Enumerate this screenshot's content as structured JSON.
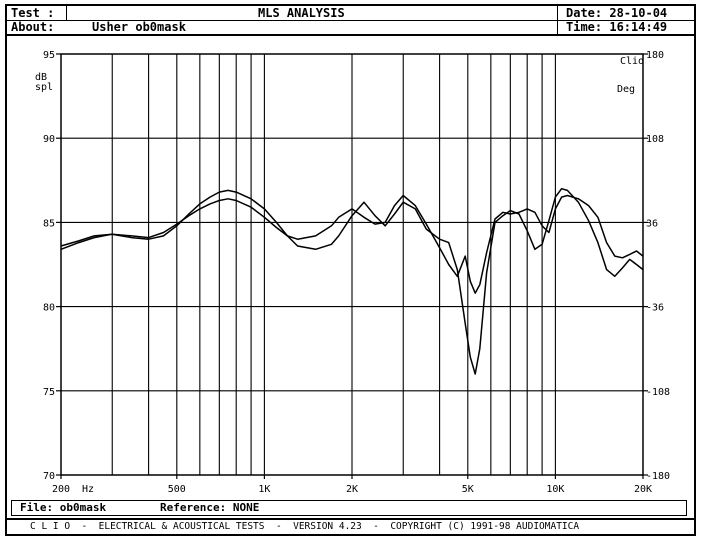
{
  "header": {
    "test_label": "Test :",
    "about_label": "About:",
    "about_value": "Usher ob0mask",
    "title": "MLS ANALYSIS",
    "date": "Date: 28-10-04",
    "time": "Time: 16:14:49"
  },
  "footer": {
    "file": "File: ob0mask",
    "reference": "Reference: NONE",
    "credits": "C L I O  -  ELECTRICAL & ACOUSTICAL TESTS  -  VERSION 4.23  -  COPYRIGHT (C) 1991-98 AUDIOMATICA"
  },
  "chart_data": {
    "type": "line",
    "title": "MLS ANALYSIS",
    "xlabel": "Hz",
    "ylabel": "dB spl",
    "y2label": "Deg",
    "brand": "Clio",
    "x_scale": "log",
    "xlim": [
      200,
      20000
    ],
    "ylim": [
      70,
      95
    ],
    "y2lim": [
      -180,
      180
    ],
    "grid": true,
    "x_ticks": [
      {
        "value": 200,
        "label": "200"
      },
      {
        "value": 500,
        "label": "500"
      },
      {
        "value": 1000,
        "label": "1K"
      },
      {
        "value": 2000,
        "label": "2K"
      },
      {
        "value": 5000,
        "label": "5K"
      },
      {
        "value": 10000,
        "label": "10K"
      },
      {
        "value": 20000,
        "label": "20K"
      }
    ],
    "y_ticks": [
      {
        "value": 95,
        "label": "95"
      },
      {
        "value": 90,
        "label": "90"
      },
      {
        "value": 85,
        "label": "85"
      },
      {
        "value": 80,
        "label": "80"
      },
      {
        "value": 75,
        "label": "75"
      },
      {
        "value": 70,
        "label": "70"
      }
    ],
    "y2_ticks": [
      {
        "value": 180,
        "label": "180"
      },
      {
        "value": 108,
        "label": "108"
      },
      {
        "value": 36,
        "label": "36"
      },
      {
        "value": -36,
        "label": "-36"
      },
      {
        "value": -108,
        "label": "-108"
      },
      {
        "value": -180,
        "label": "-180"
      }
    ],
    "series": [
      {
        "x": [
          200,
          230,
          260,
          300,
          350,
          400,
          450,
          500,
          550,
          600,
          650,
          700,
          750,
          800,
          900,
          1000,
          1100,
          1200,
          1300,
          1500,
          1700,
          1800,
          2000,
          2200,
          2400,
          2600,
          2800,
          3000,
          3300,
          3600,
          4000,
          4300,
          4600,
          4900,
          5100,
          5300,
          5500,
          5800,
          6200,
          6600,
          7000,
          7500,
          8000,
          8500,
          9000,
          9500,
          10000,
          10500,
          11000,
          12000,
          13000,
          14000,
          15000,
          16000,
          17000,
          18000,
          19000,
          20000
        ],
        "values": [
          83.6,
          83.9,
          84.2,
          84.3,
          84.1,
          84.0,
          84.2,
          84.8,
          85.5,
          86.1,
          86.5,
          86.8,
          86.9,
          86.8,
          86.4,
          85.8,
          85.0,
          84.2,
          83.6,
          83.4,
          83.7,
          84.2,
          85.4,
          86.2,
          85.4,
          84.8,
          85.5,
          86.2,
          85.8,
          84.6,
          84.0,
          83.8,
          82.2,
          79.0,
          77.0,
          76.0,
          77.5,
          82.0,
          85.0,
          85.4,
          85.7,
          85.5,
          84.5,
          83.4,
          83.7,
          85.1,
          86.5,
          87.0,
          86.9,
          86.2,
          85.1,
          83.8,
          82.2,
          81.8,
          82.3,
          82.8,
          82.5,
          82.2
        ]
      },
      {
        "x": [
          200,
          230,
          260,
          300,
          350,
          400,
          450,
          500,
          550,
          600,
          650,
          700,
          750,
          800,
          900,
          1000,
          1100,
          1200,
          1300,
          1500,
          1700,
          1800,
          2000,
          2200,
          2400,
          2600,
          2800,
          3000,
          3300,
          3600,
          4000,
          4300,
          4600,
          4900,
          5100,
          5300,
          5500,
          5800,
          6200,
          6600,
          7000,
          7500,
          8000,
          8500,
          9000,
          9500,
          10000,
          10500,
          11000,
          12000,
          13000,
          14000,
          15000,
          16000,
          17000,
          18000,
          19000,
          20000
        ],
        "values": [
          83.4,
          83.8,
          84.1,
          84.3,
          84.2,
          84.1,
          84.4,
          84.9,
          85.4,
          85.8,
          86.1,
          86.3,
          86.4,
          86.3,
          85.9,
          85.3,
          84.7,
          84.2,
          84.0,
          84.2,
          84.8,
          85.3,
          85.8,
          85.3,
          84.9,
          85.0,
          86.0,
          86.6,
          86.0,
          84.9,
          83.5,
          82.5,
          81.8,
          83.0,
          81.5,
          80.8,
          81.3,
          83.2,
          85.2,
          85.6,
          85.5,
          85.6,
          85.8,
          85.6,
          84.8,
          84.4,
          85.8,
          86.5,
          86.6,
          86.4,
          86.0,
          85.3,
          83.8,
          83.0,
          82.9,
          83.1,
          83.3,
          83.0
        ]
      }
    ]
  }
}
